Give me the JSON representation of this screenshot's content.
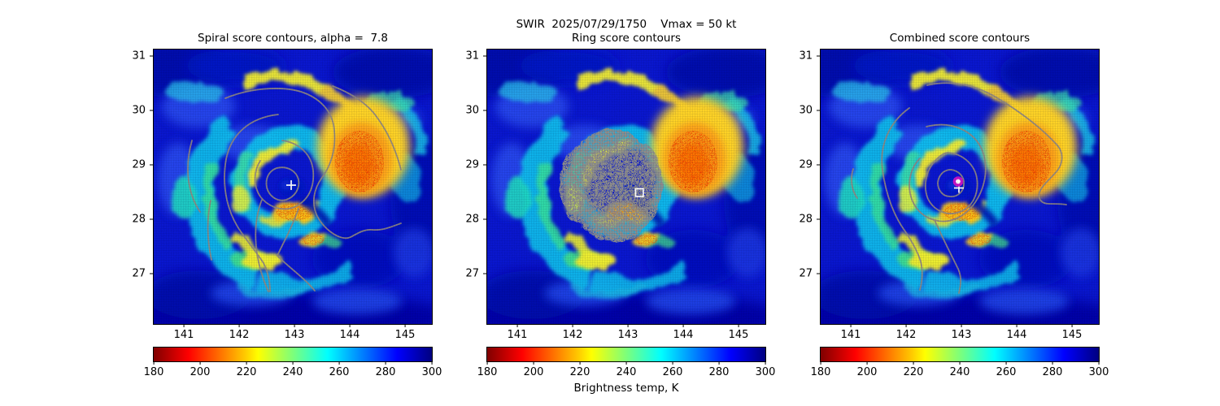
{
  "panels": [
    {
      "title": "Spiral score contours, alpha =  7.8",
      "overlay": "spiral score contour lines",
      "marker": "white plus at storm center"
    },
    {
      "suptitle": "SWIR  2025/07/29/1750    Vmax = 50 kt",
      "title": "Ring score contours",
      "overlay": "gray speckled ring-score disk",
      "marker": "white open square at best ring center"
    },
    {
      "title": "Combined score contours",
      "overlay": "combined score contour lines",
      "marker": "magenta circle with white plus at combined center"
    }
  ],
  "axes": {
    "x_ticks": [
      "141",
      "142",
      "143",
      "144",
      "145"
    ],
    "y_ticks": [
      "31",
      "30",
      "29",
      "28",
      "27"
    ]
  },
  "colorbar": {
    "ticks": [
      "180",
      "200",
      "220",
      "240",
      "260",
      "280",
      "300"
    ],
    "label": "Brightness temp, K",
    "gradient": [
      "#800000 0%",
      "#ff0000 12.5%",
      "#ffcc00 33%",
      "#ffff00 37.5%",
      "#7dff7a 50%",
      "#00ffff 62.5%",
      "#0000ff 87.5%",
      "#000080 100%"
    ]
  },
  "colors": {
    "contour": "#8f8781",
    "ring_region": "#8d8d8d",
    "marker_white": "#ffffff",
    "marker_magenta": "#c613c6",
    "axes": "#000000",
    "background": "#ffffff"
  },
  "chart_data": {
    "type": "heatmap",
    "title_center": "SWIR  2025/07/29/1750    Vmax = 50 kt",
    "subplot_titles": [
      "Spiral score contours, alpha =  7.8",
      "Ring score contours",
      "Combined score contours"
    ],
    "x_ticks": [
      141,
      142,
      143,
      144,
      145
    ],
    "y_ticks": [
      31,
      30,
      29,
      28,
      27
    ],
    "xlim": [
      140.45,
      145.47
    ],
    "ylim": [
      26.07,
      31.12
    ],
    "colorbar": {
      "label": "Brightness temp, K",
      "ticks": [
        180,
        200,
        220,
        240,
        260,
        280,
        300
      ],
      "range": [
        180,
        300
      ],
      "colormap": "jet reversed (180 K = dark red, 300 K = dark navy)"
    },
    "image_description": "SWIR satellite brightness-temperature image of a tropical cyclone, identical base image in all three panels; warm ocean background ~290-300 K (blue), spiral cloud bands ~240-260 K (cyan/green), cold convective tops ~200-225 K (yellow-orange-red) in a large blob northeast of the center near lon 144.2 lat 29.4, a cold arc north of the center, patches south and southwest of the center, and a dark warm eye near lon 142.9 lat 28.6",
    "markers": [
      {
        "panel": "spiral",
        "symbol": "plus",
        "color": "#ffffff",
        "lon": 142.9,
        "lat": 28.6
      },
      {
        "panel": "ring",
        "symbol": "open-square",
        "color": "#ffffff",
        "lon": 143.2,
        "lat": 28.5
      },
      {
        "panel": "combined",
        "symbol": "filled-circle-magenta-ring",
        "color": "#c613c6",
        "lon": 142.9,
        "lat": 28.7
      }
    ],
    "overlays": [
      {
        "panel": "spiral",
        "kind": "contours",
        "color": "#8f8781",
        "description": "spiral score contour lines wrapping clockwise around the center, roughly 5 nested levels"
      },
      {
        "panel": "ring",
        "kind": "region",
        "color": "#8d8d8d",
        "description": "speckled gray disk of ring-score search region, radius ~1 deg centered near lon 142.9 lat 28.6"
      },
      {
        "panel": "combined",
        "kind": "contours",
        "color": "#8f8781",
        "description": "combined score contour lines, roughly 5 nested levels around lon 142.9 lat 28.65"
      }
    ]
  }
}
